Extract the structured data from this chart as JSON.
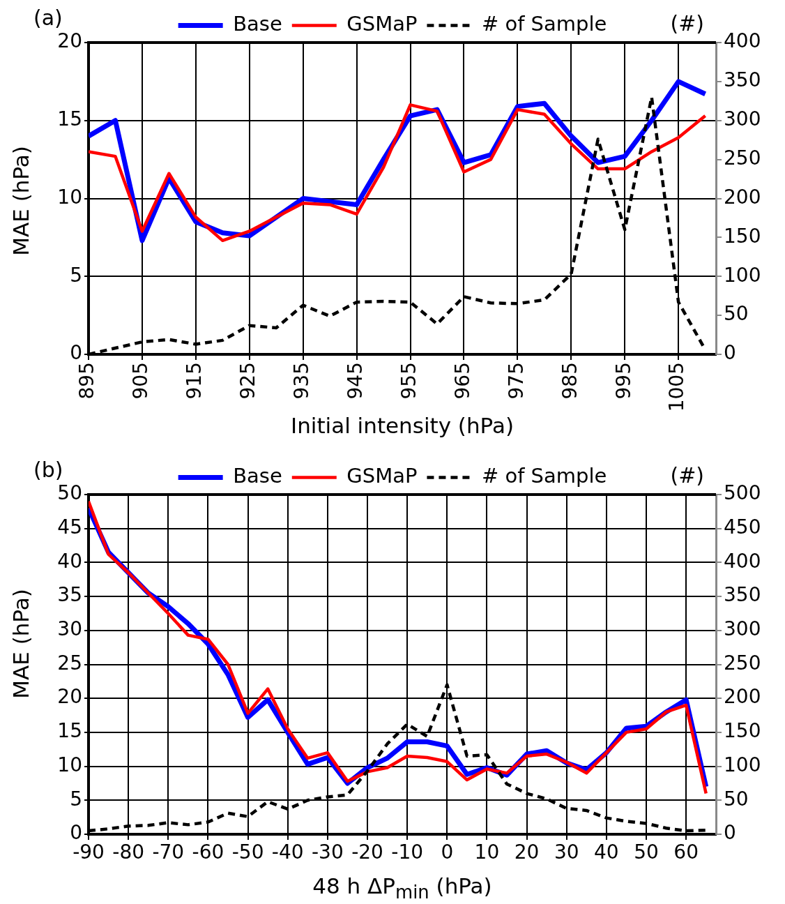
{
  "chart_data": [
    {
      "type": "line",
      "annotations": [
        "(a)"
      ],
      "xlabel": "Initial intensity (hPa)",
      "ylabel": "MAE (hPa)",
      "y2label": "(#)",
      "x": [
        895,
        900,
        905,
        910,
        915,
        920,
        925,
        930,
        935,
        940,
        945,
        950,
        955,
        960,
        965,
        970,
        975,
        980,
        985,
        990,
        995,
        1000,
        1005,
        1010
      ],
      "series": [
        {
          "name": "Base",
          "color": "#0000ff",
          "values": [
            14.0,
            15.0,
            7.3,
            11.3,
            8.5,
            7.8,
            7.6,
            8.8,
            10.0,
            9.8,
            9.6,
            12.5,
            15.3,
            15.7,
            12.3,
            12.8,
            15.9,
            16.1,
            14.0,
            12.3,
            12.7,
            15.0,
            17.5,
            16.7
          ]
        },
        {
          "name": "GSMaP",
          "color": "#ff0000",
          "values": [
            13.0,
            12.7,
            7.9,
            11.6,
            8.8,
            7.3,
            7.9,
            8.8,
            9.7,
            9.6,
            9.0,
            12.0,
            16.0,
            15.6,
            11.7,
            12.5,
            15.7,
            15.4,
            13.5,
            11.9,
            11.9,
            13.0,
            13.9,
            15.3
          ]
        },
        {
          "name": "# of Sample",
          "color": "#000000",
          "axis": "y2",
          "line_style": "dashed",
          "values": [
            0,
            8,
            16,
            19,
            13,
            18,
            37,
            34,
            63,
            49,
            67,
            68,
            67,
            39,
            74,
            66,
            65,
            70,
            103,
            276,
            160,
            330,
            67,
            6
          ]
        }
      ],
      "xlim": [
        895,
        1012
      ],
      "xticks": [
        895,
        905,
        915,
        925,
        935,
        945,
        955,
        965,
        975,
        985,
        995,
        1005
      ],
      "ylim": [
        0,
        20
      ],
      "yticks": [
        0,
        5,
        10,
        15,
        20
      ],
      "y2lim": [
        0,
        400
      ],
      "y2ticks": [
        0,
        50,
        100,
        150,
        200,
        250,
        300,
        350,
        400
      ],
      "grid": true,
      "legend": "top",
      "marker": "none",
      "line_style": "solid"
    },
    {
      "type": "line",
      "annotations": [
        "(b)"
      ],
      "xlabel": "48 h ΔP$_{min}$ (hPa)",
      "ylabel": "MAE (hPa)",
      "y2label": "(#)",
      "x": [
        -90,
        -85,
        -80,
        -75,
        -70,
        -65,
        -60,
        -55,
        -50,
        -45,
        -40,
        -35,
        -30,
        -25,
        -20,
        -15,
        -10,
        -5,
        0,
        5,
        10,
        15,
        20,
        25,
        30,
        35,
        40,
        45,
        50,
        55,
        60,
        65
      ],
      "series": [
        {
          "name": "Base",
          "color": "#0000ff",
          "values": [
            48,
            41.5,
            38.5,
            35.5,
            33.5,
            31,
            28,
            23.5,
            17.2,
            19.8,
            15,
            10.3,
            11.3,
            7.5,
            9.8,
            11.2,
            13.6,
            13.6,
            13,
            8.8,
            9.8,
            8.7,
            11.8,
            12.3,
            10.5,
            9.5,
            12,
            15.6,
            15.9,
            18,
            19.8,
            7
          ]
        },
        {
          "name": "GSMaP",
          "color": "#ff0000",
          "values": [
            49,
            41.2,
            38.5,
            35.5,
            32.5,
            29.3,
            28.7,
            25,
            17.8,
            21.4,
            15.5,
            11.2,
            12,
            7.8,
            9.2,
            9.8,
            11.5,
            11.3,
            10.7,
            8,
            9.6,
            9,
            11.5,
            11.8,
            10.6,
            9,
            12,
            15,
            15.5,
            18,
            19,
            6
          ]
        },
        {
          "name": "# of Sample",
          "color": "#000000",
          "axis": "y2",
          "line_style": "dashed",
          "values": [
            5,
            8,
            12,
            13,
            17,
            14,
            18,
            31,
            26,
            48,
            37,
            50,
            55,
            58,
            93,
            133,
            162,
            144,
            220,
            115,
            117,
            74,
            60,
            52,
            38,
            35,
            24,
            19,
            16,
            9,
            5,
            6
          ]
        }
      ],
      "xlim": [
        -90,
        67.5
      ],
      "xticks": [
        -90,
        -80,
        -70,
        -60,
        -50,
        -40,
        -30,
        -20,
        -10,
        0,
        10,
        20,
        30,
        40,
        50,
        60
      ],
      "ylim": [
        0,
        50
      ],
      "yticks": [
        0,
        5,
        10,
        15,
        20,
        25,
        30,
        35,
        40,
        45,
        50
      ],
      "y2lim": [
        0,
        500
      ],
      "y2ticks": [
        0,
        50,
        100,
        150,
        200,
        250,
        300,
        350,
        400,
        450,
        500
      ],
      "grid": true,
      "legend": "top",
      "marker": "none",
      "line_style": "solid"
    }
  ]
}
